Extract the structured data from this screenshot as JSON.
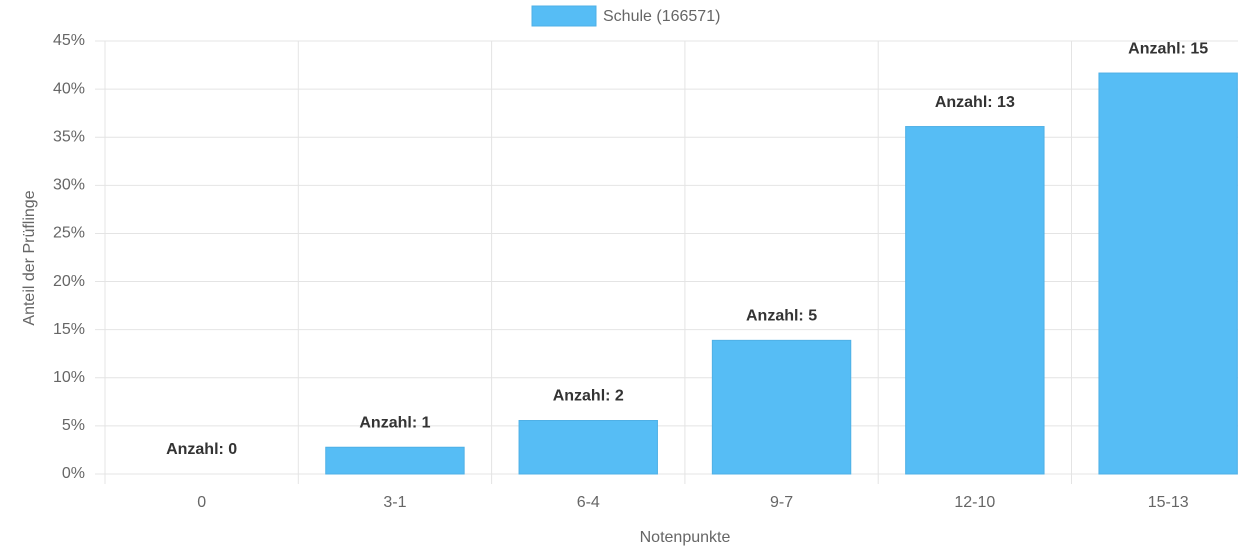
{
  "chart_data": {
    "type": "bar",
    "legend": "Schule (166571)",
    "color": "#56bdf5",
    "x_label": "Notenpunkte",
    "y_label": "Anteil der Prüflinge",
    "categories": [
      "0",
      "3-1",
      "6-4",
      "9-7",
      "12-10",
      "15-13"
    ],
    "values": [
      0,
      2.78,
      5.56,
      13.89,
      36.11,
      41.67
    ],
    "bar_labels": [
      "Anzahl: 0",
      "Anzahl: 1",
      "Anzahl: 2",
      "Anzahl: 5",
      "Anzahl: 13",
      "Anzahl: 15"
    ],
    "ylim": [
      0,
      45
    ],
    "yticks": [
      {
        "value": 0,
        "label": "0%"
      },
      {
        "value": 5,
        "label": "5%"
      },
      {
        "value": 10,
        "label": "10%"
      },
      {
        "value": 15,
        "label": "15%"
      },
      {
        "value": 20,
        "label": "20%"
      },
      {
        "value": 25,
        "label": "25%"
      },
      {
        "value": 30,
        "label": "30%"
      },
      {
        "value": 35,
        "label": "35%"
      },
      {
        "value": 40,
        "label": "40%"
      },
      {
        "value": 45,
        "label": "45%"
      }
    ],
    "grid": true
  }
}
